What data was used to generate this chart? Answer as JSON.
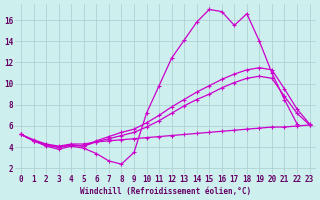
{
  "xlabel": "Windchill (Refroidissement éolien,°C)",
  "background_color": "#cdf0ee",
  "grid_color": "#aacccc",
  "line_color": "#cc00cc",
  "xlim": [
    -0.5,
    23.5
  ],
  "ylim": [
    1.5,
    17.5
  ],
  "yticks": [
    2,
    4,
    6,
    8,
    10,
    12,
    14,
    16
  ],
  "xticks": [
    0,
    1,
    2,
    3,
    4,
    5,
    6,
    7,
    8,
    9,
    10,
    11,
    12,
    13,
    14,
    15,
    16,
    17,
    18,
    19,
    20,
    21,
    22,
    23
  ],
  "line1_x": [
    0,
    1,
    2,
    3,
    4,
    5,
    6,
    7,
    8,
    9,
    10,
    11,
    12,
    13,
    14,
    15,
    16,
    17,
    18,
    19,
    20,
    21,
    22
  ],
  "line1_y": [
    5.2,
    4.6,
    4.1,
    3.8,
    4.1,
    3.9,
    3.4,
    2.7,
    2.4,
    3.5,
    7.2,
    9.8,
    12.4,
    14.1,
    15.8,
    17.0,
    16.8,
    15.5,
    16.6,
    14.0,
    11.0,
    8.5,
    6.2
  ],
  "line2_x": [
    0,
    1,
    2,
    3,
    4,
    5,
    6,
    7,
    8,
    9,
    10,
    11,
    12,
    13,
    14,
    15,
    16,
    17,
    18,
    19,
    20,
    21,
    22,
    23
  ],
  "line2_y": [
    5.2,
    4.6,
    4.2,
    4.0,
    4.2,
    4.1,
    4.6,
    5.0,
    5.4,
    5.7,
    6.3,
    7.0,
    7.8,
    8.5,
    9.2,
    9.8,
    10.4,
    10.9,
    11.3,
    11.5,
    11.3,
    9.5,
    7.6,
    6.2
  ],
  "line3_x": [
    0,
    1,
    2,
    3,
    4,
    5,
    6,
    7,
    8,
    9,
    10,
    11,
    12,
    13,
    14,
    15,
    16,
    17,
    18,
    19,
    20,
    21,
    22,
    23
  ],
  "line3_y": [
    5.2,
    4.6,
    4.2,
    4.0,
    4.2,
    4.1,
    4.5,
    4.8,
    5.1,
    5.4,
    5.9,
    6.5,
    7.2,
    7.9,
    8.5,
    9.0,
    9.6,
    10.1,
    10.5,
    10.7,
    10.5,
    8.8,
    7.2,
    6.1
  ],
  "line4_x": [
    0,
    1,
    2,
    3,
    4,
    5,
    6,
    7,
    8,
    9,
    10,
    11,
    12,
    13,
    14,
    15,
    16,
    17,
    18,
    19,
    20,
    21,
    22,
    23
  ],
  "line4_y": [
    5.2,
    4.7,
    4.3,
    4.1,
    4.3,
    4.3,
    4.5,
    4.6,
    4.7,
    4.8,
    4.9,
    5.0,
    5.1,
    5.2,
    5.3,
    5.4,
    5.5,
    5.6,
    5.7,
    5.8,
    5.9,
    5.9,
    6.0,
    6.1
  ],
  "font_color": "#660066",
  "tick_fontsize": 5.5,
  "xlabel_fontsize": 5.5
}
